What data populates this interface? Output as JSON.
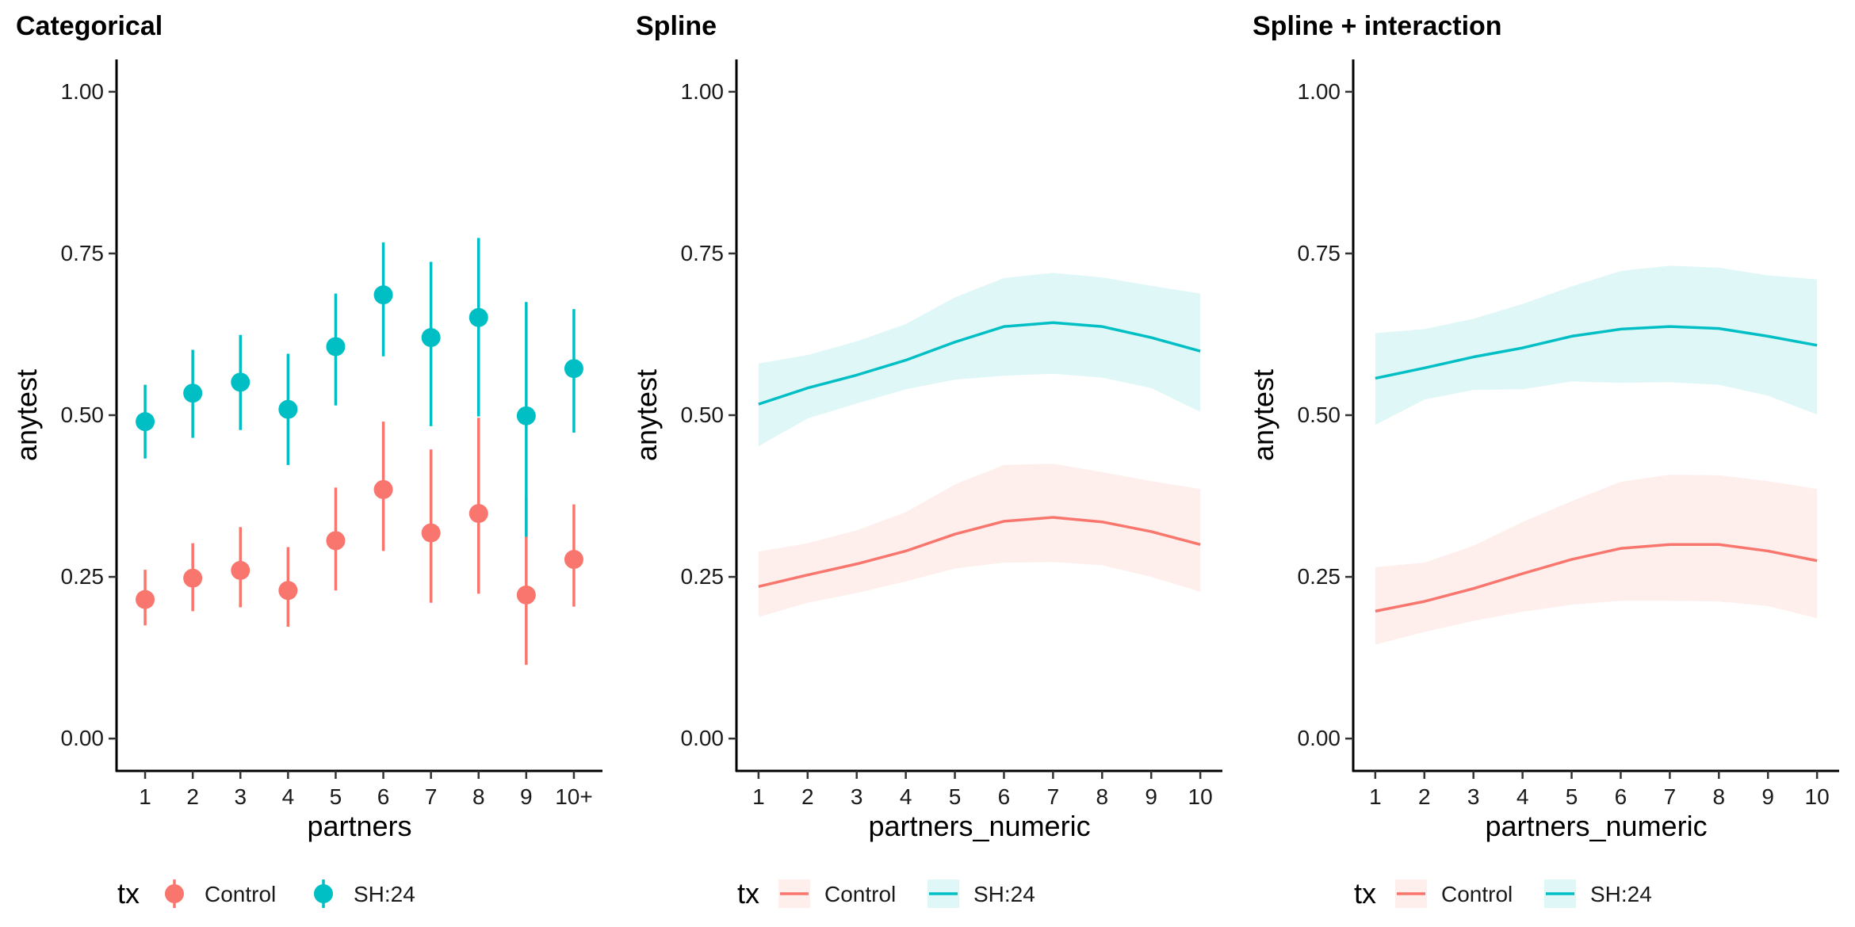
{
  "chart_data": [
    {
      "type": "scatter",
      "title": "Categorical",
      "xlabel": "partners",
      "ylabel": "anytest",
      "ylim": [
        -0.05,
        1.05
      ],
      "yticks": [
        "0.00",
        "0.25",
        "0.50",
        "0.75",
        "1.00"
      ],
      "categories": [
        "1",
        "2",
        "3",
        "4",
        "5",
        "6",
        "7",
        "8",
        "9",
        "10+"
      ],
      "legend": {
        "title": "tx",
        "position": "bottom",
        "entries": [
          "Control",
          "SH:24"
        ]
      },
      "series": [
        {
          "name": "Control",
          "color": "#F8766D",
          "values": [
            0.215,
            0.248,
            0.26,
            0.229,
            0.306,
            0.385,
            0.318,
            0.348,
            0.222,
            0.277
          ],
          "lower": [
            0.175,
            0.197,
            0.203,
            0.173,
            0.229,
            0.29,
            0.21,
            0.224,
            0.114,
            0.204
          ],
          "upper": [
            0.261,
            0.302,
            0.327,
            0.296,
            0.388,
            0.49,
            0.447,
            0.496,
            0.374,
            0.362
          ]
        },
        {
          "name": "SH:24",
          "color": "#00BFC4",
          "values": [
            0.49,
            0.534,
            0.551,
            0.509,
            0.606,
            0.686,
            0.62,
            0.651,
            0.499,
            0.572
          ],
          "lower": [
            0.433,
            0.465,
            0.477,
            0.423,
            0.515,
            0.591,
            0.483,
            0.498,
            0.312,
            0.473
          ],
          "upper": [
            0.547,
            0.601,
            0.624,
            0.595,
            0.688,
            0.767,
            0.737,
            0.774,
            0.675,
            0.664
          ]
        }
      ]
    },
    {
      "type": "line",
      "title": "Spline",
      "xlabel": "partners_numeric",
      "ylabel": "anytest",
      "ylim": [
        -0.05,
        1.05
      ],
      "xlim": [
        0.55,
        10.45
      ],
      "yticks": [
        "0.00",
        "0.25",
        "0.50",
        "0.75",
        "1.00"
      ],
      "xticks": [
        "1",
        "2",
        "3",
        "4",
        "5",
        "6",
        "7",
        "8",
        "9",
        "10"
      ],
      "x": [
        1,
        2,
        3,
        4,
        5,
        6,
        7,
        8,
        9,
        10
      ],
      "legend": {
        "title": "tx",
        "position": "bottom",
        "entries": [
          "Control",
          "SH:24"
        ]
      },
      "series": [
        {
          "name": "Control",
          "color": "#F8766D",
          "values": [
            0.235,
            0.253,
            0.27,
            0.29,
            0.316,
            0.336,
            0.342,
            0.335,
            0.32,
            0.3
          ],
          "lower": [
            0.188,
            0.21,
            0.225,
            0.243,
            0.263,
            0.272,
            0.273,
            0.268,
            0.25,
            0.227
          ],
          "upper": [
            0.289,
            0.302,
            0.322,
            0.35,
            0.393,
            0.423,
            0.425,
            0.412,
            0.398,
            0.386
          ]
        },
        {
          "name": "SH:24",
          "color": "#00BFC4",
          "values": [
            0.517,
            0.542,
            0.562,
            0.585,
            0.613,
            0.637,
            0.643,
            0.637,
            0.62,
            0.599
          ],
          "lower": [
            0.452,
            0.495,
            0.518,
            0.54,
            0.555,
            0.561,
            0.564,
            0.558,
            0.542,
            0.505
          ],
          "upper": [
            0.58,
            0.593,
            0.614,
            0.641,
            0.682,
            0.712,
            0.72,
            0.713,
            0.7,
            0.688
          ]
        }
      ]
    },
    {
      "type": "line",
      "title": "Spline + interaction",
      "xlabel": "partners_numeric",
      "ylabel": "anytest",
      "ylim": [
        -0.05,
        1.05
      ],
      "xlim": [
        0.55,
        10.45
      ],
      "yticks": [
        "0.00",
        "0.25",
        "0.50",
        "0.75",
        "1.00"
      ],
      "xticks": [
        "1",
        "2",
        "3",
        "4",
        "5",
        "6",
        "7",
        "8",
        "9",
        "10"
      ],
      "x": [
        1,
        2,
        3,
        4,
        5,
        6,
        7,
        8,
        9,
        10
      ],
      "legend": {
        "title": "tx",
        "position": "bottom",
        "entries": [
          "Control",
          "SH:24"
        ]
      },
      "series": [
        {
          "name": "Control",
          "color": "#F8766D",
          "values": [
            0.197,
            0.212,
            0.232,
            0.255,
            0.277,
            0.294,
            0.3,
            0.3,
            0.29,
            0.275
          ],
          "lower": [
            0.145,
            0.165,
            0.182,
            0.196,
            0.207,
            0.213,
            0.213,
            0.212,
            0.205,
            0.186
          ],
          "upper": [
            0.265,
            0.272,
            0.298,
            0.335,
            0.367,
            0.397,
            0.408,
            0.407,
            0.398,
            0.386
          ]
        },
        {
          "name": "SH:24",
          "color": "#00BFC4",
          "values": [
            0.557,
            0.573,
            0.59,
            0.604,
            0.622,
            0.633,
            0.637,
            0.634,
            0.622,
            0.608
          ],
          "lower": [
            0.485,
            0.524,
            0.539,
            0.54,
            0.552,
            0.55,
            0.551,
            0.547,
            0.53,
            0.501
          ],
          "upper": [
            0.627,
            0.633,
            0.649,
            0.672,
            0.699,
            0.723,
            0.731,
            0.728,
            0.716,
            0.71
          ]
        }
      ]
    }
  ]
}
